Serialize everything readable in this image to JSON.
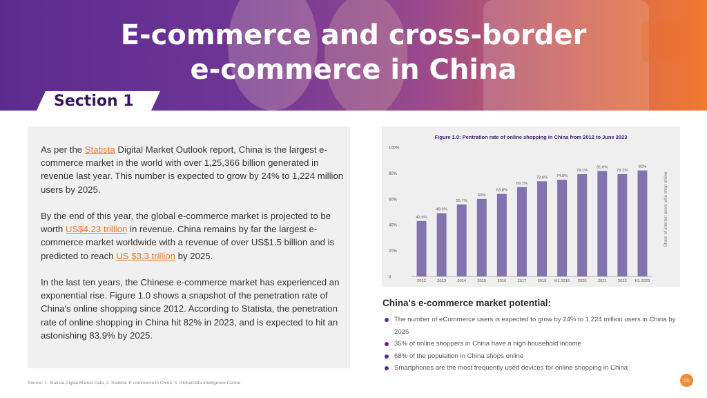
{
  "header": {
    "title_line1": "E-commerce and cross-border",
    "title_line2": "e-commerce in China",
    "section_label": "Section 1"
  },
  "body_text": {
    "p1_before": "As per the ",
    "p1_link": "Statista",
    "p1_after": " Digital Market Outlook report, China is the largest e-commerce market in the world with over 1,25,366 billion generated in revenue last year. This number is expected to grow by 24% to 1,224 million users by 2025.",
    "p2_before": "By the end of this year, the global e-commerce market is projected to be worth ",
    "p2_link1": "US$4.23 trillion",
    "p2_mid": " in revenue. China remains by far the largest e-commerce market worldwide with a revenue of over US$1.5 billion and is predicted to reach ",
    "p2_link2": "US $3.3 trillion",
    "p2_after": " by 2025.",
    "p3": "In the last ten years, the Chinese e-commerce market has experienced an exponential rise. Figure 1.0 shows a snapshot of the penetration rate of China's online shopping since 2012. According to Statista, the penetration rate of online shopping in China hit 82% in 2023,  and is expected to hit an astonishing 83.9% by 2025."
  },
  "chart_data": {
    "type": "bar",
    "title": "Figure 1.0: Pentration rate of online shopping in China from 2012 to June 2023",
    "categories": [
      "2012",
      "2013",
      "2014",
      "2015",
      "2016",
      "2017",
      "2018",
      "H1 2019",
      "2020",
      "2021",
      "2022",
      "H1 2023"
    ],
    "values": [
      42.9,
      48.9,
      55.7,
      60,
      63.8,
      69.1,
      73.6,
      74.8,
      79.1,
      81.6,
      79.2,
      82
    ],
    "value_labels": [
      "42.9%",
      "48.9%",
      "55.7%",
      "60%",
      "63.8%",
      "69.1%",
      "73.6%",
      "74.8%",
      "79.1%",
      "81.6%",
      "79.2%",
      "82%"
    ],
    "y_ticks": [
      "0",
      "20%",
      "40%",
      "60%",
      "80%",
      "100%"
    ],
    "ylim": [
      0,
      100
    ],
    "ylabel": "Share of internet users who shop online",
    "xlabel": "",
    "bar_color": "#8272ad"
  },
  "potential": {
    "heading": "China's e-commerce market potential:",
    "items": [
      "The number of eCommerce users is expected to grow by 24% to 1,224 million users in China by 2025",
      "35% of online shoppers in China have a high household income",
      "68% of the population in China shops online",
      "Smartphones are the most frequently used devices for online shopping in China"
    ]
  },
  "footer": {
    "source": "Source: 1. Statista Digital Market Data, 2. Statista: E-commerce in China, 3. GlobalData Intelligence Centre",
    "page_number": "05"
  }
}
